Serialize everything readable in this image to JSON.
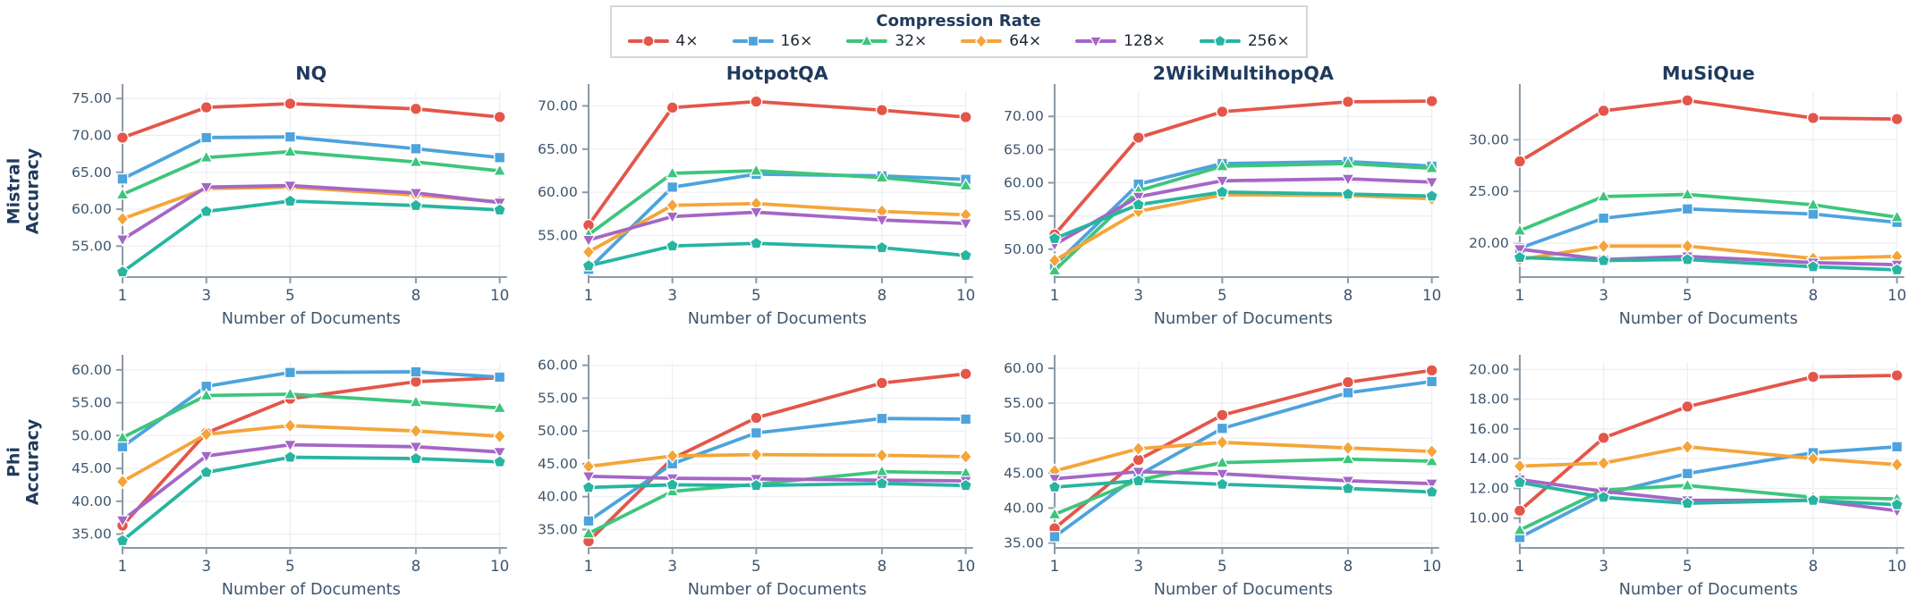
{
  "legend": {
    "title": "Compression Rate",
    "entries": [
      {
        "label": "4×",
        "color": "#e4564a",
        "marker": "circle"
      },
      {
        "label": "16×",
        "color": "#4da3dc",
        "marker": "square"
      },
      {
        "label": "32×",
        "color": "#3ec57d",
        "marker": "triangle-up"
      },
      {
        "label": "64×",
        "color": "#f4a539",
        "marker": "diamond"
      },
      {
        "label": "128×",
        "color": "#a566c6",
        "marker": "triangle-down"
      },
      {
        "label": "256×",
        "color": "#27b5a0",
        "marker": "pentagon"
      }
    ]
  },
  "axes": {
    "xlabel": "Number of Documents",
    "xticks": [
      1,
      3,
      5,
      8,
      10
    ]
  },
  "rows": [
    {
      "label": "Mistral\nAccuracy"
    },
    {
      "label": "Phi\nAccuracy"
    }
  ],
  "chart_data": [
    {
      "type": "line",
      "row": "Mistral",
      "dataset": "NQ",
      "title": "NQ",
      "x": [
        1,
        3,
        5,
        8,
        10
      ],
      "xlabel": "Number of Documents",
      "ylim": [
        50.8,
        76.0
      ],
      "yticks": [
        55,
        60,
        65,
        70,
        75
      ],
      "grid": true,
      "series": [
        {
          "name": "4×",
          "values": [
            69.7,
            73.8,
            74.3,
            73.6,
            72.5
          ]
        },
        {
          "name": "16×",
          "values": [
            64.1,
            69.7,
            69.8,
            68.2,
            67.0
          ]
        },
        {
          "name": "32×",
          "values": [
            62.0,
            67.0,
            67.8,
            66.4,
            65.2
          ]
        },
        {
          "name": "64×",
          "values": [
            58.7,
            62.8,
            63.0,
            61.9,
            61.0
          ]
        },
        {
          "name": "128×",
          "values": [
            55.9,
            63.0,
            63.2,
            62.2,
            60.9
          ]
        },
        {
          "name": "256×",
          "values": [
            51.5,
            59.7,
            61.1,
            60.5,
            59.9
          ]
        }
      ]
    },
    {
      "type": "line",
      "row": "Mistral",
      "dataset": "HotpotQA",
      "title": "HotpotQA",
      "x": [
        1,
        3,
        5,
        8,
        10
      ],
      "xlabel": "Number of Documents",
      "ylim": [
        50.2,
        71.7
      ],
      "yticks": [
        55,
        60,
        65,
        70
      ],
      "grid": true,
      "series": [
        {
          "name": "4×",
          "values": [
            56.2,
            69.8,
            70.5,
            69.5,
            68.7
          ]
        },
        {
          "name": "16×",
          "values": [
            51.1,
            60.6,
            62.1,
            61.9,
            61.5
          ]
        },
        {
          "name": "32×",
          "values": [
            55.1,
            62.2,
            62.5,
            61.7,
            60.8
          ]
        },
        {
          "name": "64×",
          "values": [
            53.1,
            58.5,
            58.7,
            57.8,
            57.4
          ]
        },
        {
          "name": "128×",
          "values": [
            54.5,
            57.2,
            57.7,
            56.8,
            56.4
          ]
        },
        {
          "name": "256×",
          "values": [
            51.5,
            53.8,
            54.1,
            53.6,
            52.7
          ]
        }
      ]
    },
    {
      "type": "line",
      "row": "Mistral",
      "dataset": "2WikiMultihopQA",
      "title": "2WikiMultihopQA",
      "x": [
        1,
        3,
        5,
        8,
        10
      ],
      "xlabel": "Number of Documents",
      "ylim": [
        45.8,
        73.8
      ],
      "yticks": [
        50,
        55,
        60,
        65,
        70
      ],
      "grid": true,
      "series": [
        {
          "name": "4×",
          "values": [
            52.2,
            66.8,
            70.7,
            72.2,
            72.3
          ]
        },
        {
          "name": "16×",
          "values": [
            47.6,
            59.8,
            62.9,
            63.2,
            62.5
          ]
        },
        {
          "name": "32×",
          "values": [
            46.8,
            58.8,
            62.5,
            62.9,
            62.2
          ]
        },
        {
          "name": "64×",
          "values": [
            48.3,
            55.7,
            58.2,
            58.1,
            57.6
          ]
        },
        {
          "name": "128×",
          "values": [
            50.7,
            57.9,
            60.3,
            60.6,
            60.1
          ]
        },
        {
          "name": "256×",
          "values": [
            51.6,
            56.7,
            58.6,
            58.3,
            58.0
          ]
        }
      ]
    },
    {
      "type": "line",
      "row": "Mistral",
      "dataset": "MuSiQue",
      "title": "MuSiQue",
      "x": [
        1,
        3,
        5,
        8,
        10
      ],
      "xlabel": "Number of Documents",
      "ylim": [
        16.7,
        34.7
      ],
      "yticks": [
        20,
        25,
        30
      ],
      "grid": true,
      "series": [
        {
          "name": "4×",
          "values": [
            27.9,
            32.8,
            33.8,
            32.1,
            32.0
          ]
        },
        {
          "name": "16×",
          "values": [
            19.5,
            22.4,
            23.3,
            22.8,
            22.0
          ]
        },
        {
          "name": "32×",
          "values": [
            21.2,
            24.5,
            24.7,
            23.7,
            22.5
          ]
        },
        {
          "name": "64×",
          "values": [
            18.4,
            19.7,
            19.7,
            18.5,
            18.7
          ]
        },
        {
          "name": "128×",
          "values": [
            19.4,
            18.4,
            18.7,
            18.1,
            17.9
          ]
        },
        {
          "name": "256×",
          "values": [
            18.6,
            18.3,
            18.4,
            17.7,
            17.4
          ]
        }
      ]
    },
    {
      "type": "line",
      "row": "Phi",
      "dataset": "NQ",
      "title": "",
      "x": [
        1,
        3,
        5,
        8,
        10
      ],
      "xlabel": "Number of Documents",
      "ylim": [
        32.9,
        61.2
      ],
      "yticks": [
        35,
        40,
        45,
        50,
        55,
        60
      ],
      "grid": true,
      "series": [
        {
          "name": "4×",
          "values": [
            36.3,
            50.4,
            55.6,
            58.2,
            58.8
          ]
        },
        {
          "name": "16×",
          "values": [
            48.3,
            57.5,
            59.6,
            59.7,
            58.9
          ]
        },
        {
          "name": "32×",
          "values": [
            49.7,
            56.1,
            56.3,
            55.1,
            54.2
          ]
        },
        {
          "name": "64×",
          "values": [
            43.0,
            50.2,
            51.5,
            50.7,
            49.9
          ]
        },
        {
          "name": "128×",
          "values": [
            37.1,
            46.9,
            48.6,
            48.3,
            47.5
          ]
        },
        {
          "name": "256×",
          "values": [
            34.0,
            44.4,
            46.7,
            46.5,
            46.0
          ]
        }
      ]
    },
    {
      "type": "line",
      "row": "Phi",
      "dataset": "HotpotQA",
      "title": "",
      "x": [
        1,
        3,
        5,
        8,
        10
      ],
      "xlabel": "Number of Documents",
      "ylim": [
        32.2,
        60.5
      ],
      "yticks": [
        35,
        40,
        45,
        50,
        55,
        60
      ],
      "grid": true,
      "series": [
        {
          "name": "4×",
          "values": [
            33.2,
            45.8,
            52.0,
            57.3,
            58.7
          ]
        },
        {
          "name": "16×",
          "values": [
            36.3,
            45.0,
            49.7,
            51.9,
            51.8
          ]
        },
        {
          "name": "32×",
          "values": [
            34.4,
            40.8,
            41.9,
            43.8,
            43.6
          ]
        },
        {
          "name": "64×",
          "values": [
            44.6,
            46.2,
            46.4,
            46.3,
            46.1
          ]
        },
        {
          "name": "128×",
          "values": [
            43.1,
            42.8,
            42.7,
            42.5,
            42.4
          ]
        },
        {
          "name": "256×",
          "values": [
            41.4,
            41.8,
            41.7,
            42.0,
            41.7
          ]
        }
      ]
    },
    {
      "type": "line",
      "row": "Phi",
      "dataset": "2WikiMultihopQA",
      "title": "",
      "x": [
        1,
        3,
        5,
        8,
        10
      ],
      "xlabel": "Number of Documents",
      "ylim": [
        34.3,
        60.9
      ],
      "yticks": [
        35,
        40,
        45,
        50,
        55,
        60
      ],
      "grid": true,
      "series": [
        {
          "name": "4×",
          "values": [
            37.1,
            46.9,
            53.3,
            58.0,
            59.7
          ]
        },
        {
          "name": "16×",
          "values": [
            35.9,
            44.7,
            51.4,
            56.5,
            58.1
          ]
        },
        {
          "name": "32×",
          "values": [
            39.1,
            44.0,
            46.5,
            47.0,
            46.7
          ]
        },
        {
          "name": "64×",
          "values": [
            45.3,
            48.5,
            49.4,
            48.6,
            48.1
          ]
        },
        {
          "name": "128×",
          "values": [
            44.2,
            45.2,
            44.9,
            43.9,
            43.5
          ]
        },
        {
          "name": "256×",
          "values": [
            43.0,
            43.9,
            43.4,
            42.8,
            42.3
          ]
        }
      ]
    },
    {
      "type": "line",
      "row": "Phi",
      "dataset": "MuSiQue",
      "title": "",
      "x": [
        1,
        3,
        5,
        8,
        10
      ],
      "xlabel": "Number of Documents",
      "ylim": [
        8.0,
        20.5
      ],
      "yticks": [
        10,
        12,
        14,
        16,
        18,
        20
      ],
      "grid": true,
      "series": [
        {
          "name": "4×",
          "values": [
            10.5,
            15.4,
            17.5,
            19.5,
            19.6
          ]
        },
        {
          "name": "16×",
          "values": [
            8.7,
            11.6,
            13.0,
            14.4,
            14.8
          ]
        },
        {
          "name": "32×",
          "values": [
            9.2,
            11.9,
            12.2,
            11.4,
            11.3
          ]
        },
        {
          "name": "64×",
          "values": [
            13.5,
            13.7,
            14.8,
            14.0,
            13.6
          ]
        },
        {
          "name": "128×",
          "values": [
            12.6,
            11.8,
            11.2,
            11.2,
            10.5
          ]
        },
        {
          "name": "256×",
          "values": [
            12.4,
            11.4,
            11.0,
            11.2,
            10.9
          ]
        }
      ]
    }
  ],
  "style": {
    "title_color": "#1f3a5c",
    "tick_color": "#3d566e",
    "spine_color": "#8b9aa6",
    "grid_color": "#ededf3"
  }
}
